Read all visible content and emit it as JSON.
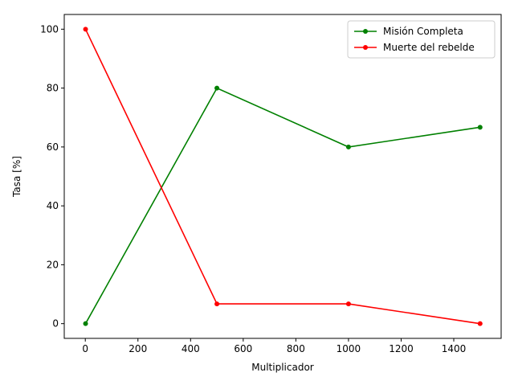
{
  "chart_data": {
    "type": "line",
    "xlabel": "Multiplicador",
    "ylabel": "Tasa [%]",
    "xlim": [
      -80,
      1580
    ],
    "ylim": [
      -5,
      105
    ],
    "xticks": [
      0,
      200,
      400,
      600,
      800,
      1000,
      1200,
      1400
    ],
    "yticks": [
      0,
      20,
      40,
      60,
      80,
      100
    ],
    "grid": false,
    "legend_position": "top-right",
    "x": [
      1,
      500,
      1000,
      1500
    ],
    "series": [
      {
        "name": "Misión Completa",
        "color": "#008000",
        "values": [
          0,
          80,
          60,
          66.7
        ]
      },
      {
        "name": "Muerte del rebelde",
        "color": "#ff0000",
        "values": [
          100,
          6.7,
          6.7,
          0
        ]
      }
    ]
  }
}
